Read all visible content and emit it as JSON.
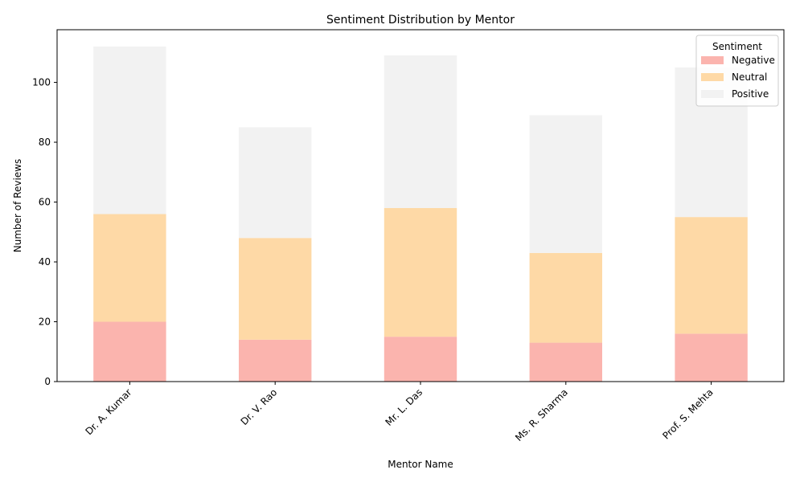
{
  "chart_data": {
    "type": "bar",
    "stacked": true,
    "title": "Sentiment Distribution by Mentor",
    "xlabel": "Mentor Name",
    "ylabel": "Number of Reviews",
    "categories": [
      "Dr. A. Kumar",
      "Dr. V. Rao",
      "Mr. L. Das",
      "Ms. R. Sharma",
      "Prof. S. Mehta"
    ],
    "series": [
      {
        "name": "Negative",
        "color": "#fbb4ae",
        "values": [
          20,
          14,
          15,
          13,
          16
        ]
      },
      {
        "name": "Neutral",
        "color": "#fed9a6",
        "values": [
          36,
          34,
          43,
          30,
          39
        ]
      },
      {
        "name": "Positive",
        "color": "#f2f2f2",
        "values": [
          56,
          37,
          51,
          46,
          50
        ]
      }
    ],
    "ylim": [
      0,
      117.6
    ],
    "yticks": [
      0,
      20,
      40,
      60,
      80,
      100
    ],
    "legend": {
      "title": "Sentiment",
      "placement": "top-right"
    },
    "grid": false
  }
}
